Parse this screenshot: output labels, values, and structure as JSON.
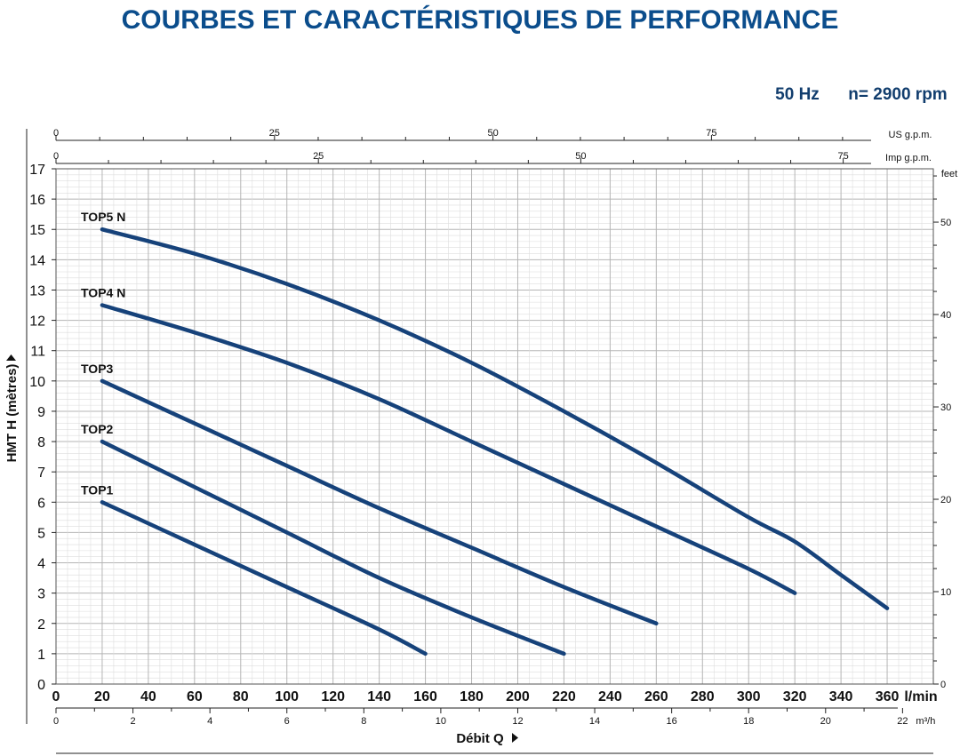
{
  "header": {
    "title": "COURBES ET CARACTÉRISTIQUES DE PERFORMANCE",
    "frequency": "50 Hz",
    "speed": "n= 2900 rpm"
  },
  "colors": {
    "title": "#0b4d8c",
    "curve": "#16427a",
    "grid_major": "#b5b5b5",
    "grid_minor": "#dddddd"
  },
  "chart_data": {
    "type": "line",
    "xlabel": "Débit Q",
    "ylabel": "HMT H (mètres)",
    "x_unit": "l/min",
    "xlim": [
      0,
      380
    ],
    "ylim": [
      0,
      17
    ],
    "grid": true,
    "x_ticks": [
      0,
      20,
      40,
      60,
      80,
      100,
      120,
      140,
      160,
      180,
      200,
      220,
      240,
      260,
      280,
      300,
      320,
      340,
      360
    ],
    "y_ticks": [
      0,
      1,
      2,
      3,
      4,
      5,
      6,
      7,
      8,
      9,
      10,
      11,
      12,
      13,
      14,
      15,
      16,
      17
    ],
    "secondary_axes": {
      "m3h": {
        "unit": "m³/h",
        "ticks": [
          0,
          2,
          4,
          6,
          8,
          10,
          12,
          14,
          16,
          18,
          20,
          22
        ]
      },
      "us_gpm": {
        "unit": "US g.p.m.",
        "ticks": [
          0,
          25,
          50,
          75
        ]
      },
      "imp_gpm": {
        "unit": "Imp g.p.m.",
        "ticks": [
          0,
          25,
          50,
          75
        ]
      },
      "feet": {
        "unit": "feet",
        "ticks": [
          0,
          10,
          20,
          30,
          40,
          50
        ]
      }
    },
    "series": [
      {
        "name": "TOP5 N",
        "x": [
          20,
          60,
          100,
          140,
          180,
          220,
          260,
          300,
          320,
          340,
          360
        ],
        "y": [
          15.0,
          14.2,
          13.2,
          12.0,
          10.6,
          9.0,
          7.3,
          5.5,
          4.7,
          3.6,
          2.5
        ]
      },
      {
        "name": "TOP4 N",
        "x": [
          20,
          60,
          100,
          140,
          180,
          220,
          260,
          300,
          320
        ],
        "y": [
          12.5,
          11.6,
          10.6,
          9.4,
          8.0,
          6.6,
          5.2,
          3.8,
          3.0
        ]
      },
      {
        "name": "TOP3",
        "x": [
          20,
          60,
          100,
          140,
          180,
          220,
          260
        ],
        "y": [
          10.0,
          8.6,
          7.2,
          5.8,
          4.5,
          3.2,
          2.0
        ]
      },
      {
        "name": "TOP2",
        "x": [
          20,
          60,
          100,
          140,
          180,
          220
        ],
        "y": [
          8.0,
          6.5,
          5.0,
          3.5,
          2.2,
          1.0
        ]
      },
      {
        "name": "TOP1",
        "x": [
          20,
          60,
          100,
          140,
          160
        ],
        "y": [
          6.0,
          4.6,
          3.2,
          1.8,
          1.0
        ]
      }
    ]
  }
}
